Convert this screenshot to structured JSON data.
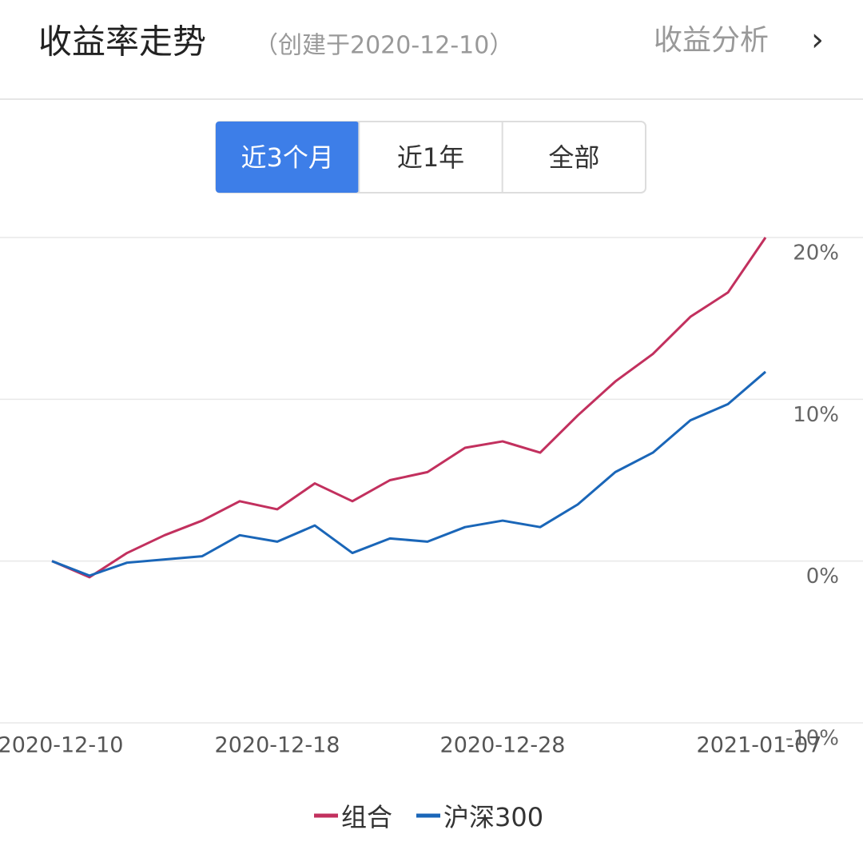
{
  "header": {
    "title": "收益率走势",
    "subtitle": "（创建于2020-12-10）",
    "link": "收益分析",
    "chevron": "›"
  },
  "tabs": {
    "items": [
      "近3个月",
      "近1年",
      "全部"
    ],
    "selected": 0
  },
  "chart_data": {
    "type": "line",
    "categories": [
      "2020-12-10",
      null,
      null,
      null,
      null,
      null,
      "2020-12-18",
      null,
      null,
      null,
      null,
      null,
      "2020-12-28",
      null,
      null,
      null,
      null,
      null,
      null,
      "2021-01-07"
    ],
    "series": [
      {
        "name": "组合",
        "color": "#c2305e",
        "values": [
          0,
          -1.0,
          0.5,
          1.6,
          2.5,
          3.7,
          3.2,
          4.8,
          3.7,
          5.0,
          5.5,
          7.0,
          7.4,
          6.7,
          9.0,
          11.1,
          12.8,
          15.1,
          16.6,
          20.0
        ]
      },
      {
        "name": "沪深300",
        "color": "#1a66b8",
        "values": [
          0,
          -0.9,
          -0.1,
          0.1,
          0.3,
          1.6,
          1.2,
          2.2,
          0.5,
          1.4,
          1.2,
          2.1,
          2.5,
          2.1,
          3.5,
          5.5,
          6.7,
          8.7,
          9.7,
          11.7
        ]
      }
    ],
    "ylim": [
      -10,
      20
    ],
    "yticks": [
      {
        "value": -10,
        "label": "-10%"
      },
      {
        "value": 0,
        "label": "0%"
      },
      {
        "value": 10,
        "label": "10%"
      },
      {
        "value": 20,
        "label": "20%"
      }
    ],
    "grid": true,
    "legend": "bottom"
  }
}
